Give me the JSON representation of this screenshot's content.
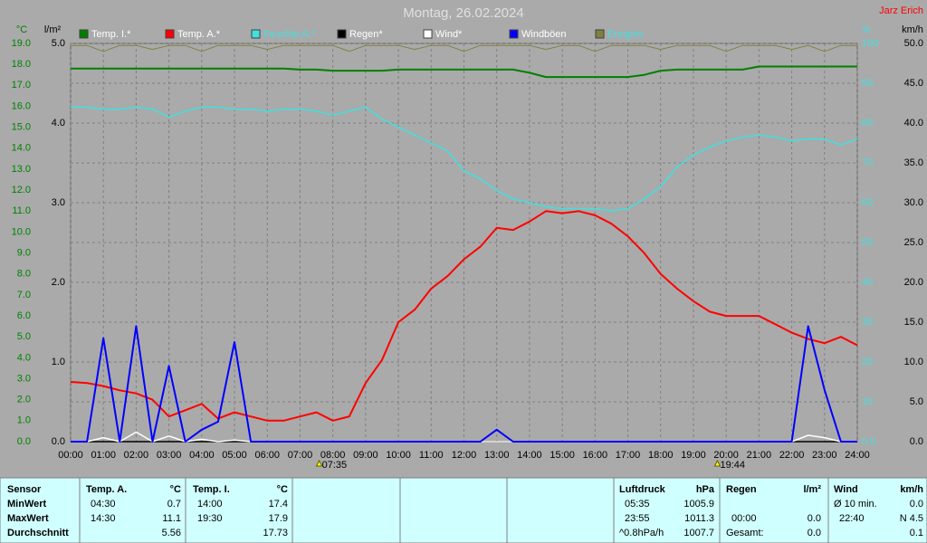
{
  "chart_data": {
    "type": "line",
    "title": "Montag, 26.02.2024",
    "author": "Jarz Erich",
    "x": [
      0,
      0.5,
      1,
      1.5,
      2,
      2.5,
      3,
      3.5,
      4,
      4.5,
      5,
      5.5,
      6,
      6.5,
      7,
      7.5,
      8,
      8.5,
      9,
      9.5,
      10,
      10.5,
      11,
      11.5,
      12,
      12.5,
      13,
      13.5,
      14,
      14.5,
      15,
      15.5,
      16,
      16.5,
      17,
      17.5,
      18,
      18.5,
      19,
      19.5,
      20,
      20.5,
      21,
      21.5,
      22,
      22.5,
      23,
      23.5,
      24
    ],
    "xlim": [
      0,
      24
    ],
    "xticks": [
      {
        "value": 0,
        "label": "00:00"
      },
      {
        "value": 1,
        "label": "01:00"
      },
      {
        "value": 2,
        "label": "02:00"
      },
      {
        "value": 3,
        "label": "03:00"
      },
      {
        "value": 4,
        "label": "04:00"
      },
      {
        "value": 5,
        "label": "05:00"
      },
      {
        "value": 6,
        "label": "06:00"
      },
      {
        "value": 7,
        "label": "07:00"
      },
      {
        "value": 8,
        "label": "08:00"
      },
      {
        "value": 9,
        "label": "09:00"
      },
      {
        "value": 10,
        "label": "10:00"
      },
      {
        "value": 11,
        "label": "11:00"
      },
      {
        "value": 12,
        "label": "12:00"
      },
      {
        "value": 13,
        "label": "13:00"
      },
      {
        "value": 14,
        "label": "14:00"
      },
      {
        "value": 15,
        "label": "15:00"
      },
      {
        "value": 16,
        "label": "16:00"
      },
      {
        "value": 17,
        "label": "17:00"
      },
      {
        "value": 18,
        "label": "18:00"
      },
      {
        "value": 19,
        "label": "19:00"
      },
      {
        "value": 20,
        "label": "20:00"
      },
      {
        "value": 21,
        "label": "21:00"
      },
      {
        "value": 22,
        "label": "22:00"
      },
      {
        "value": 23,
        "label": "23:00"
      },
      {
        "value": 24,
        "label": "24:00"
      }
    ],
    "axes": [
      {
        "unit": "°C",
        "color": "#008000",
        "lim": [
          0,
          19
        ],
        "ticks": [
          {
            "value": 0,
            "label": "0.0"
          },
          {
            "value": 1,
            "label": "1.0"
          },
          {
            "value": 2,
            "label": "2.0"
          },
          {
            "value": 3,
            "label": "3.0"
          },
          {
            "value": 4,
            "label": "4.0"
          },
          {
            "value": 5,
            "label": "5.0"
          },
          {
            "value": 6,
            "label": "6.0"
          },
          {
            "value": 7,
            "label": "7.0"
          },
          {
            "value": 8,
            "label": "8.0"
          },
          {
            "value": 9,
            "label": "9.0"
          },
          {
            "value": 10,
            "label": "10.0"
          },
          {
            "value": 11,
            "label": "11.0"
          },
          {
            "value": 12,
            "label": "12.0"
          },
          {
            "value": 13,
            "label": "13.0"
          },
          {
            "value": 14,
            "label": "14.0"
          },
          {
            "value": 15,
            "label": "15.0"
          },
          {
            "value": 16,
            "label": "16.0"
          },
          {
            "value": 17,
            "label": "17.0"
          },
          {
            "value": 18,
            "label": "18.0"
          },
          {
            "value": 19,
            "label": "19.0"
          }
        ]
      },
      {
        "unit": "l/m²",
        "color": "#000000",
        "lim": [
          0,
          5
        ],
        "ticks": [
          {
            "value": 0,
            "label": "0.0"
          },
          {
            "value": 1,
            "label": "1.0"
          },
          {
            "value": 2,
            "label": "2.0"
          },
          {
            "value": 3,
            "label": "3.0"
          },
          {
            "value": 4,
            "label": "4.0"
          },
          {
            "value": 5,
            "label": "5.0"
          }
        ]
      },
      {
        "unit": "%",
        "color": "#40e0e0",
        "lim": [
          0,
          100
        ],
        "ticks": [
          {
            "value": 0,
            "label": "0.0"
          },
          10,
          20,
          30,
          40,
          50,
          60,
          70,
          80,
          90,
          100
        ]
      },
      {
        "unit": "km/h",
        "color": "#000000",
        "lim": [
          0,
          50
        ],
        "grid": true,
        "ticks": [
          {
            "value": 0,
            "label": "0.0"
          },
          {
            "value": 5,
            "label": "5.0"
          },
          {
            "value": 10,
            "label": "10.0"
          },
          {
            "value": 15,
            "label": "15.0"
          },
          {
            "value": 20,
            "label": "20.0"
          },
          {
            "value": 25,
            "label": "25.0"
          },
          {
            "value": 30,
            "label": "30.0"
          },
          {
            "value": 35,
            "label": "35.0"
          },
          {
            "value": 40,
            "label": "40.0"
          },
          {
            "value": 45,
            "label": "45.0"
          },
          {
            "value": 50,
            "label": "50.0"
          }
        ]
      }
    ],
    "series": [
      {
        "name": "Temp. I.*",
        "color": "#008000",
        "label_color": "#ffffff",
        "axis": 0,
        "values": [
          17.8,
          17.8,
          17.8,
          17.8,
          17.8,
          17.8,
          17.8,
          17.8,
          17.8,
          17.8,
          17.8,
          17.8,
          17.8,
          17.8,
          17.75,
          17.75,
          17.7,
          17.7,
          17.7,
          17.7,
          17.75,
          17.75,
          17.75,
          17.75,
          17.75,
          17.75,
          17.75,
          17.75,
          17.6,
          17.4,
          17.4,
          17.4,
          17.4,
          17.4,
          17.4,
          17.5,
          17.7,
          17.75,
          17.75,
          17.75,
          17.75,
          17.75,
          17.9,
          17.9,
          17.9,
          17.9,
          17.9,
          17.9,
          17.9
        ]
      },
      {
        "name": "Temp. A.*",
        "color": "#ff0000",
        "label_color": "#ffffff",
        "axis": 0,
        "values": [
          2.85,
          2.8,
          2.65,
          2.45,
          2.3,
          2.0,
          1.2,
          1.5,
          1.8,
          1.1,
          1.4,
          1.2,
          1.0,
          1.0,
          1.2,
          1.4,
          1.0,
          1.2,
          2.8,
          3.9,
          5.7,
          6.3,
          7.3,
          7.9,
          8.7,
          9.3,
          10.2,
          10.1,
          10.5,
          11.0,
          10.9,
          11.0,
          10.8,
          10.4,
          9.8,
          9.0,
          8.0,
          7.3,
          6.7,
          6.2,
          6.0,
          6.0,
          6.0,
          5.6,
          5.2,
          4.9,
          4.7,
          5.0,
          4.6
        ]
      },
      {
        "name": "Feuchte A.*",
        "color": "#40e0e0",
        "label_color": "#40e0e0",
        "axis": 2,
        "values": [
          84,
          84,
          83.5,
          83.5,
          84,
          83.5,
          81.5,
          83,
          84,
          84,
          83.5,
          83.5,
          83,
          83.5,
          83.5,
          83,
          82,
          83,
          84,
          81,
          79,
          77,
          75,
          73,
          68,
          66,
          63,
          61,
          60,
          59,
          58.5,
          58.5,
          58.5,
          58,
          58.5,
          61,
          64,
          69,
          72,
          74,
          75.5,
          76.5,
          77,
          76.5,
          75.5,
          76,
          76,
          74.5,
          76
        ]
      },
      {
        "name": "Regen*",
        "color": "#000000",
        "label_color": "#ffffff",
        "axis": 1,
        "values": [
          0,
          0,
          0,
          0,
          0,
          0,
          0,
          0,
          0,
          0,
          0,
          0,
          0,
          0,
          0,
          0,
          0,
          0,
          0,
          0,
          0,
          0,
          0,
          0,
          0,
          0,
          0,
          0,
          0,
          0,
          0,
          0,
          0,
          0,
          0,
          0,
          0,
          0,
          0,
          0,
          0,
          0,
          0,
          0,
          0,
          0,
          0,
          0,
          0
        ]
      },
      {
        "name": "Wind*",
        "color": "#ffffff",
        "label_color": "#ffffff",
        "axis": 3,
        "values": [
          0,
          0,
          0.5,
          0,
          1.2,
          0,
          0.7,
          0,
          0.3,
          0,
          0.2,
          0,
          0,
          0,
          0,
          0,
          0,
          0,
          0,
          0,
          0,
          0,
          0,
          0,
          0,
          0,
          0,
          0,
          0,
          0,
          0,
          0,
          0,
          0,
          0,
          0,
          0,
          0,
          0,
          0,
          0,
          0,
          0,
          0,
          0,
          0.8,
          0.5,
          0,
          0
        ]
      },
      {
        "name": "Windböen",
        "color": "#0000ff",
        "label_color": "#ffffff",
        "axis": 3,
        "values": [
          0,
          0,
          13,
          0,
          14.5,
          0,
          9.5,
          0,
          1.5,
          2.5,
          12.5,
          0,
          0,
          0,
          0,
          0,
          0,
          0,
          0,
          0,
          0,
          0,
          0,
          0,
          0,
          0,
          1.5,
          0,
          0,
          0,
          0,
          0,
          0,
          0,
          0,
          0,
          0,
          0,
          0,
          0,
          0,
          0,
          0,
          0,
          0,
          14.5,
          6.5,
          0,
          0
        ]
      },
      {
        "name": "Ereignis",
        "color": "#808040",
        "label_color": "#40e0e0",
        "axis": 2,
        "values": [
          99.5,
          99.5,
          98,
          99.5,
          99.5,
          98.5,
          99.5,
          99.5,
          98,
          99.5,
          99.5,
          99.5,
          98.5,
          99.5,
          99.5,
          99.5,
          99.5,
          98,
          99.5,
          99.5,
          99.5,
          98.5,
          99.5,
          99.5,
          98,
          99.5,
          99.5,
          99.5,
          99.5,
          98.5,
          99.5,
          99.5,
          98,
          99.5,
          99.5,
          99.5,
          98.5,
          99.5,
          99.5,
          99.5,
          98,
          99.5,
          99.5,
          99.5,
          98.5,
          99.5,
          98,
          99.5,
          99.5
        ]
      }
    ],
    "annotations": [
      {
        "x": 7.5833,
        "label": "07:35"
      },
      {
        "x": 19.7333,
        "label": "19:44"
      }
    ]
  },
  "table": {
    "header": [
      "Sensor",
      "Temp. A.",
      "°C",
      "Temp. I.",
      "°C",
      "Luftdruck",
      "hPa",
      "Regen",
      "l/m²",
      "Wind",
      "km/h"
    ],
    "rows": [
      {
        "label": "MinWert",
        "cells": [
          "04:30",
          "0.7",
          "14:00",
          "17.4",
          "05:35",
          "1005.9",
          null,
          null,
          "Ø 10 min.",
          "0.0"
        ]
      },
      {
        "label": "MaxWert",
        "cells": [
          "14:30",
          "11.1",
          "19:30",
          "17.9",
          "23:55",
          "1011.3",
          "00:00",
          "0.0",
          "22:40",
          "N 4.5"
        ]
      },
      {
        "label": "Durchschnitt",
        "cells": [
          null,
          "5.56",
          null,
          "17.73",
          "^0.8hPa/h",
          "1007.7",
          "Gesamt:",
          "0.0",
          null,
          "0.1"
        ]
      }
    ]
  }
}
